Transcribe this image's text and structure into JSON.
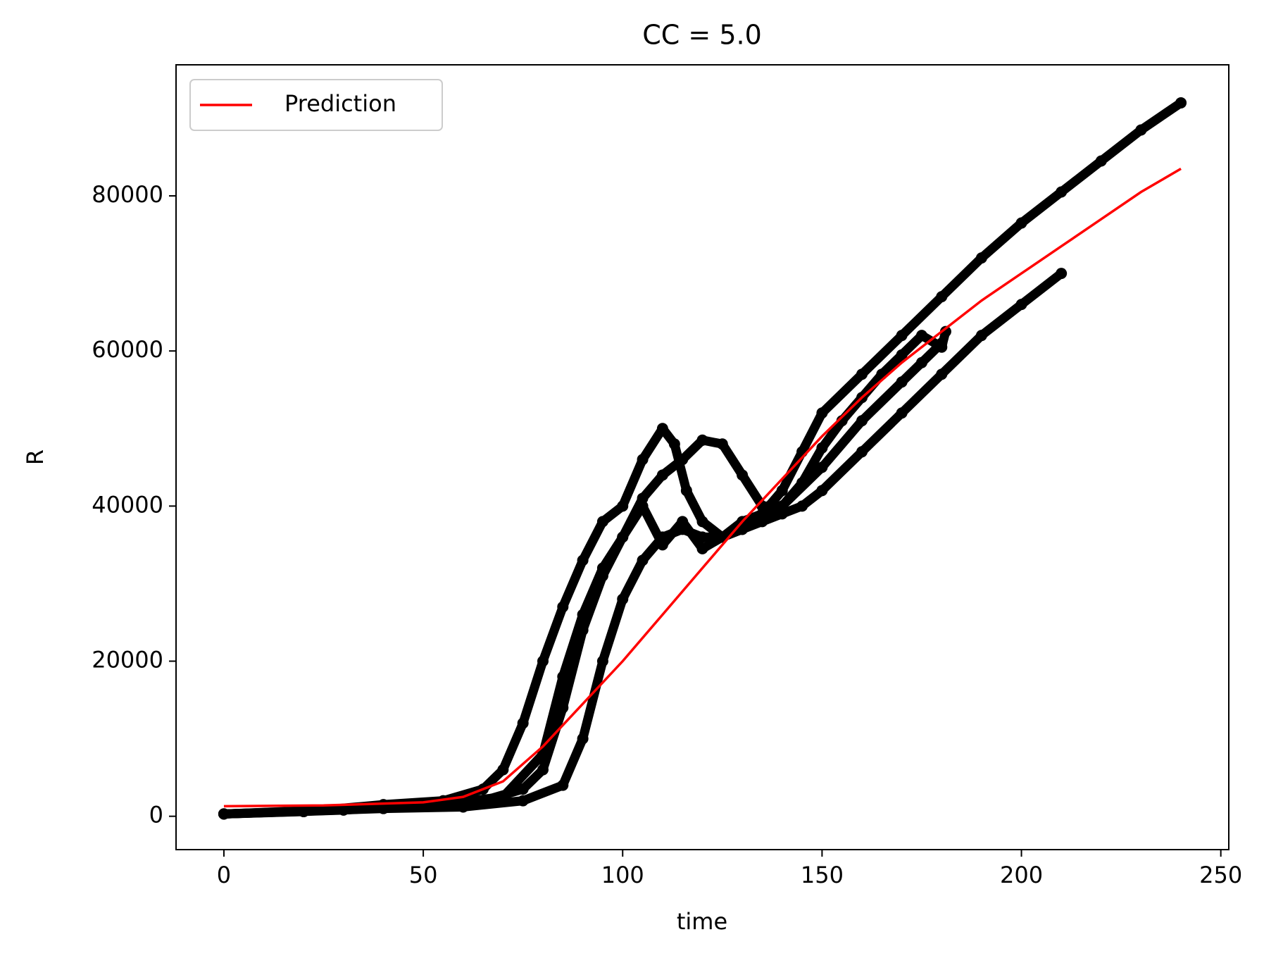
{
  "chart_data": {
    "type": "scatter",
    "title": "CC = 5.0",
    "x_label": "time",
    "y_label": "R",
    "xlim": [
      -12,
      252
    ],
    "ylim": [
      -4300,
      96900
    ],
    "xticks": [
      0,
      50,
      100,
      150,
      200,
      250
    ],
    "yticks": [
      0,
      20000,
      40000,
      60000,
      80000
    ],
    "legend": "upper left",
    "series": [
      {
        "color": "#000000",
        "x": [
          0,
          20,
          40,
          55,
          65,
          70,
          75,
          80,
          85,
          90,
          95,
          100,
          105,
          110,
          113,
          116,
          120,
          125,
          130,
          135,
          140,
          145,
          150,
          160,
          170,
          180,
          190,
          200,
          210,
          220,
          230,
          240
        ],
        "values": [
          300,
          600,
          1500,
          2000,
          3500,
          6000,
          12000,
          20000,
          27000,
          33000,
          38000,
          40000,
          46000,
          50000,
          48000,
          42000,
          38000,
          36000,
          37000,
          39000,
          42000,
          47000,
          52000,
          57000,
          62000,
          67000,
          72000,
          76500,
          80500,
          84500,
          88500,
          92000
        ]
      },
      {
        "color": "#000000",
        "x": [
          0,
          30,
          50,
          65,
          75,
          80,
          85,
          90,
          95,
          100,
          105,
          110,
          115,
          120,
          125,
          130,
          135,
          140,
          145,
          150,
          155,
          160,
          165,
          170,
          175,
          180,
          181
        ],
        "values": [
          300,
          800,
          1500,
          2000,
          3500,
          6000,
          14000,
          24000,
          31000,
          36000,
          41000,
          44000,
          46000,
          48500,
          48000,
          44000,
          40000,
          40000,
          43000,
          47500,
          51000,
          54000,
          57000,
          59500,
          62000,
          60500,
          62500
        ]
      },
      {
        "color": "#000000",
        "x": [
          0,
          40,
          60,
          75,
          85,
          90,
          95,
          100,
          105,
          110,
          115,
          120,
          125,
          130,
          135,
          140,
          145,
          150,
          160,
          170,
          180,
          190,
          200,
          210
        ],
        "values": [
          300,
          1000,
          1200,
          2000,
          4000,
          10000,
          20000,
          28000,
          33000,
          36000,
          37000,
          36000,
          36000,
          37000,
          38000,
          39000,
          40000,
          42000,
          47000,
          52000,
          57000,
          62000,
          66000,
          70000
        ]
      },
      {
        "color": "#000000",
        "x": [
          0,
          50,
          70,
          80,
          85,
          90,
          95,
          100,
          105,
          110,
          115,
          120,
          125,
          130,
          140,
          150,
          160,
          170,
          175,
          180
        ],
        "values": [
          300,
          1300,
          2500,
          8000,
          18000,
          26000,
          32000,
          36000,
          40000,
          35000,
          38000,
          34500,
          36000,
          38000,
          40000,
          45000,
          51000,
          56000,
          58500,
          61000
        ]
      },
      {
        "name": "Prediction",
        "type": "line",
        "color": "#ff0000",
        "x": [
          0,
          25,
          50,
          60,
          70,
          80,
          90,
          100,
          110,
          120,
          130,
          140,
          150,
          160,
          170,
          180,
          190,
          200,
          210,
          220,
          230,
          240
        ],
        "values": [
          1300,
          1400,
          1800,
          2500,
          4500,
          9000,
          14500,
          20000,
          26000,
          32000,
          38000,
          43500,
          49000,
          54000,
          58500,
          62500,
          66500,
          70000,
          73500,
          77000,
          80500,
          83500
        ]
      }
    ]
  }
}
